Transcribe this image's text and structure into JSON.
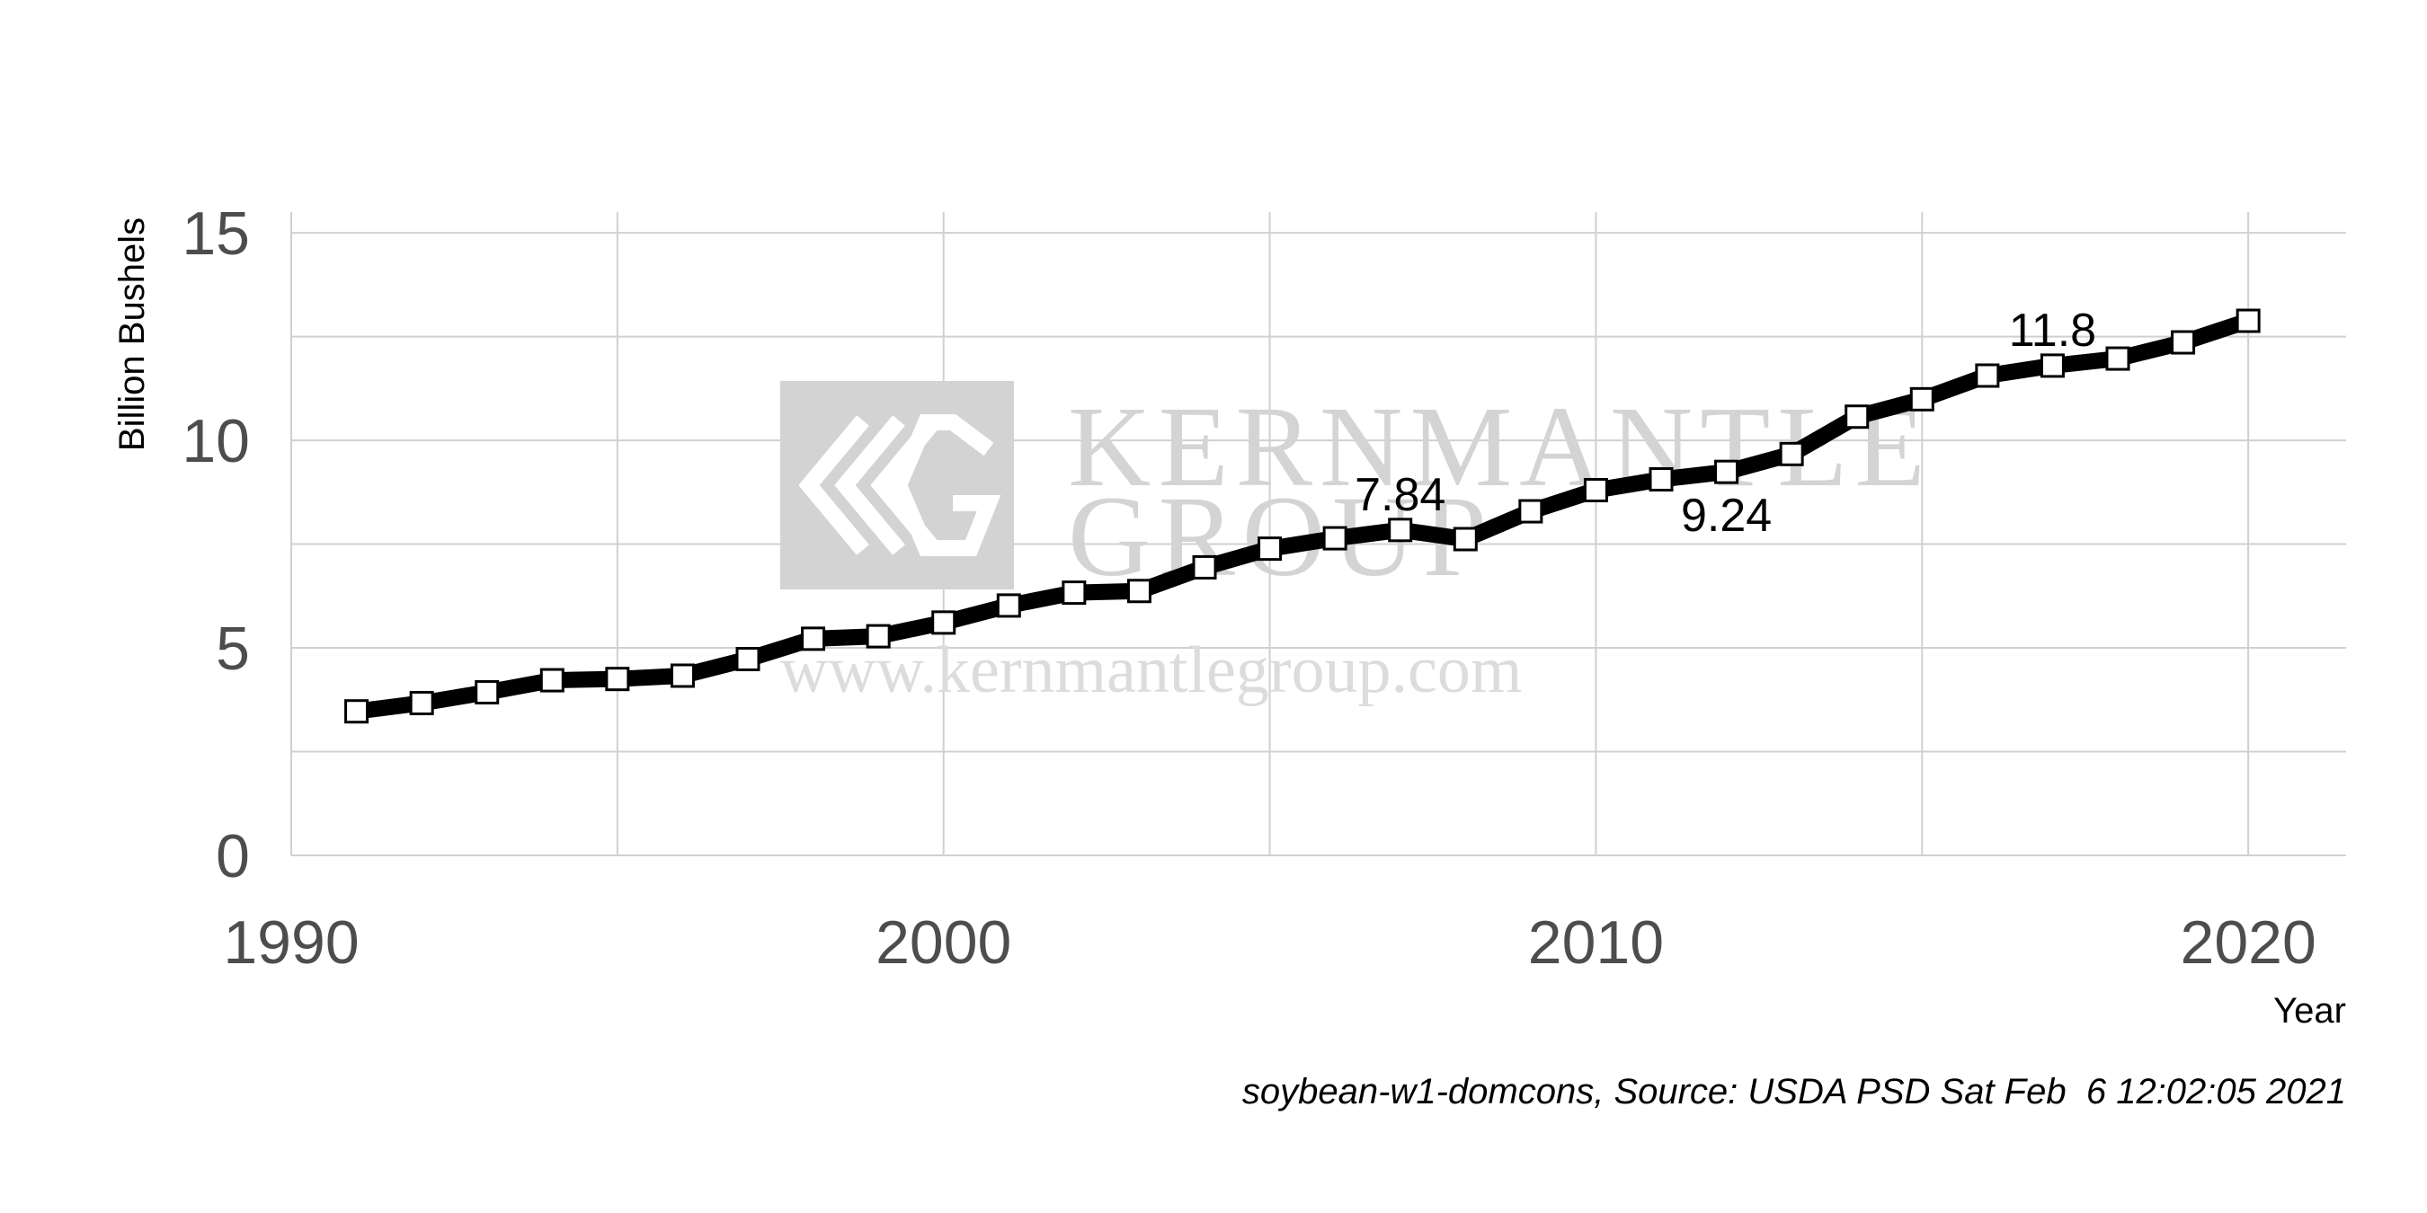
{
  "chart_data": {
    "type": "line",
    "xlabel": "Year",
    "ylabel": "Billion Bushels",
    "caption": "soybean-w1-domcons, Source: USDA PSD Sat Feb  6 12:02:05 2021",
    "xlim": [
      1990,
      2021.5
    ],
    "ylim": [
      0,
      15.5
    ],
    "x_ticks": [
      1990,
      2000,
      2010,
      2020
    ],
    "x_tick_labels": [
      "1990",
      "2000",
      "2010",
      "2020"
    ],
    "y_ticks": [
      0,
      5,
      10,
      15
    ],
    "y_tick_labels": [
      "0",
      "5",
      "10",
      "15"
    ],
    "grid": true,
    "line_color": "#000000",
    "marker": "square",
    "marker_fill": "#ffffff",
    "series": [
      {
        "x": [
          1991,
          1992,
          1993,
          1994,
          1995,
          1996,
          1997,
          1998,
          1999,
          2000,
          2001,
          2002,
          2003,
          2004,
          2005,
          2006,
          2007,
          2008,
          2009,
          2010,
          2011,
          2012,
          2013,
          2014,
          2015,
          2016,
          2017,
          2018,
          2019,
          2020
        ],
        "values": [
          3.47,
          3.67,
          3.93,
          4.22,
          4.25,
          4.33,
          4.73,
          5.22,
          5.28,
          5.61,
          6.02,
          6.33,
          6.37,
          6.94,
          7.39,
          7.64,
          7.84,
          7.62,
          8.29,
          8.8,
          9.06,
          9.24,
          9.67,
          10.57,
          10.99,
          11.56,
          11.8,
          11.97,
          12.36,
          12.88
        ]
      }
    ],
    "annotations": [
      {
        "x": 2007,
        "y": 7.84,
        "text": "7.84",
        "position": "above"
      },
      {
        "x": 2012,
        "y": 9.24,
        "text": "9.24",
        "position": "below"
      },
      {
        "x": 2017,
        "y": 11.8,
        "text": "11.8",
        "position": "above"
      }
    ]
  },
  "watermark": {
    "line1": "KERNMANTLE",
    "line2": "GROUP",
    "url": "www.kernmantlegroup.com",
    "color": "#d4d4d4"
  }
}
